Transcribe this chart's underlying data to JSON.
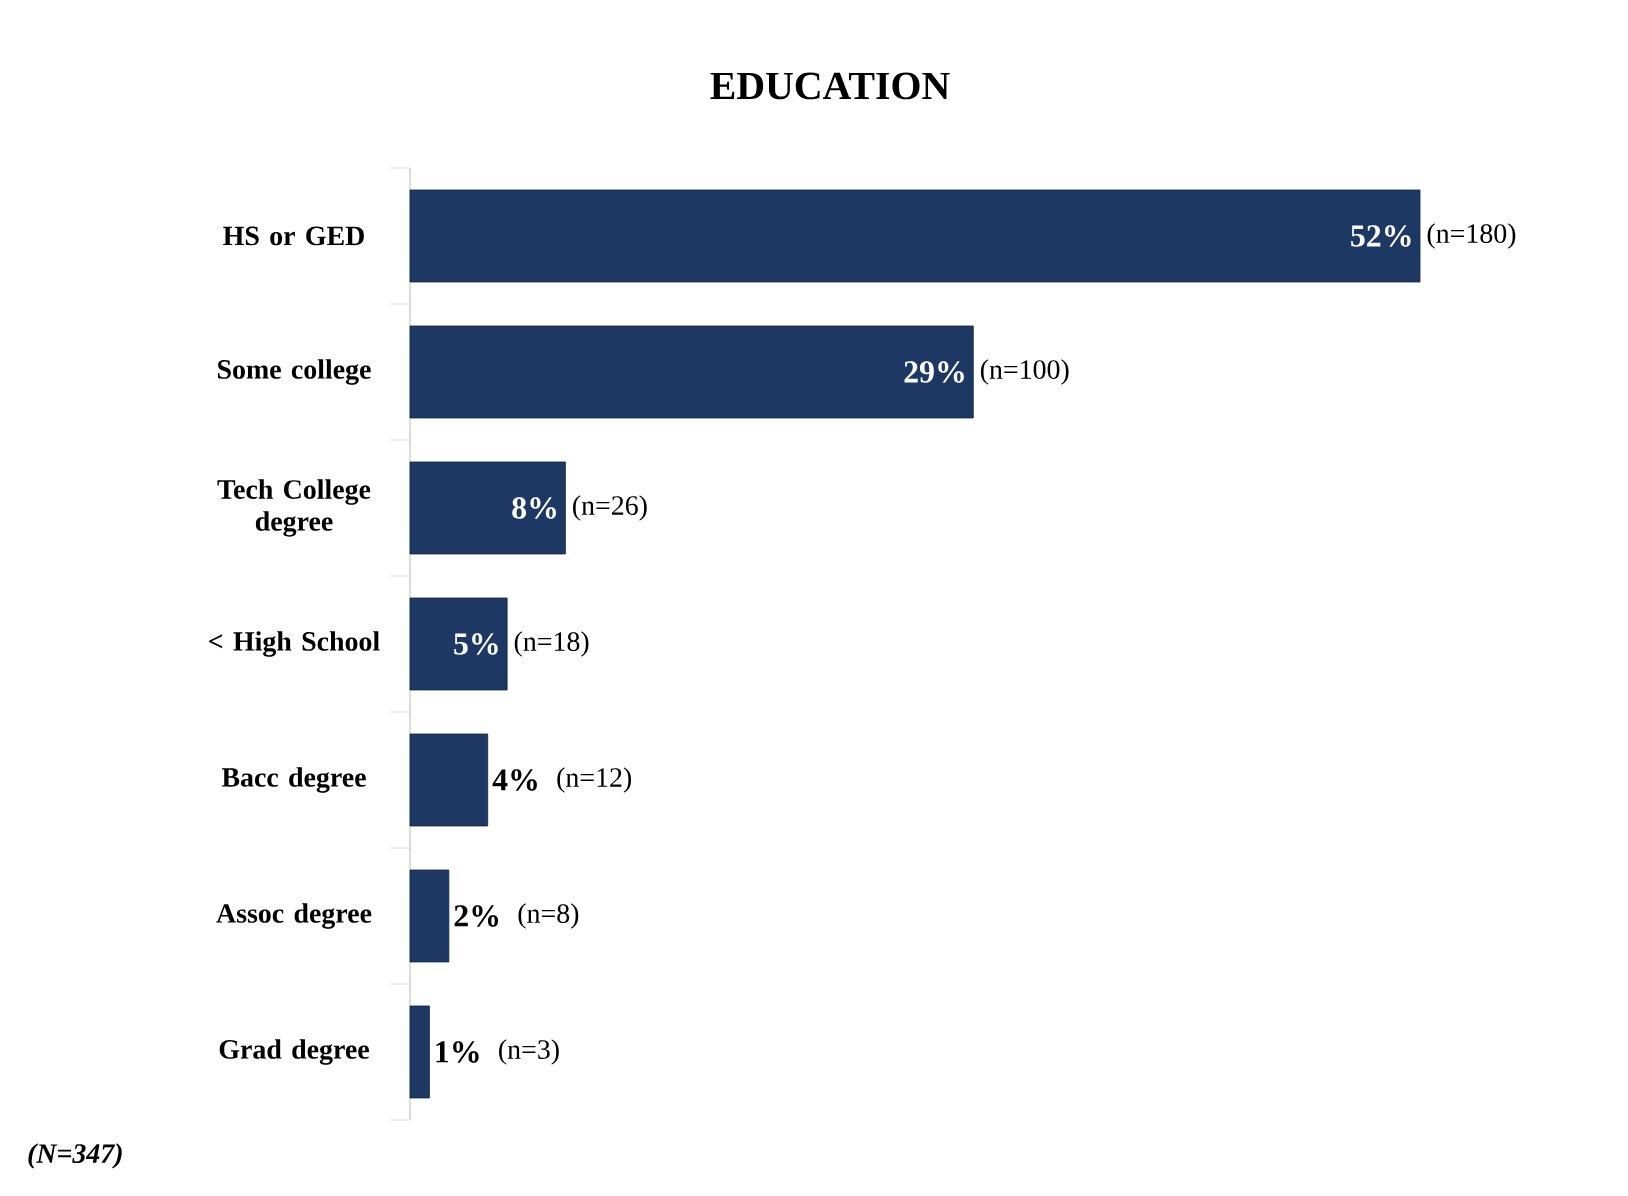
{
  "chart_data": {
    "type": "bar",
    "orientation": "horizontal",
    "title": "EDUCATION",
    "categories": [
      "HS or GED",
      "Some college",
      "Tech College degree",
      "< High School",
      "Bacc degree",
      "Assoc degree",
      "Grad degree"
    ],
    "values": [
      52,
      29,
      8,
      5,
      4,
      2,
      1
    ],
    "value_labels": [
      "52%",
      "29%",
      "8%",
      "5%",
      "4%",
      "2%",
      "1%"
    ],
    "color": "#1c3863",
    "annotations": [
      {
        "text": "(n=180)",
        "x": 52,
        "y": "HS or GED"
      },
      {
        "text": "(n=100)",
        "x": 29,
        "y": "Some college"
      },
      {
        "text": "(n=26)",
        "x": 8,
        "y": "Tech College degree"
      },
      {
        "text": "(n=18)",
        "x": 5,
        "y": "< High School"
      },
      {
        "text": "(n=12)",
        "x": 4,
        "y": "Bacc degree"
      },
      {
        "text": "(n=8)",
        "x": 2,
        "y": "Assoc degree"
      },
      {
        "text": "(n=3)",
        "x": 1,
        "y": "Grad degree"
      },
      "(N=347)"
    ]
  }
}
